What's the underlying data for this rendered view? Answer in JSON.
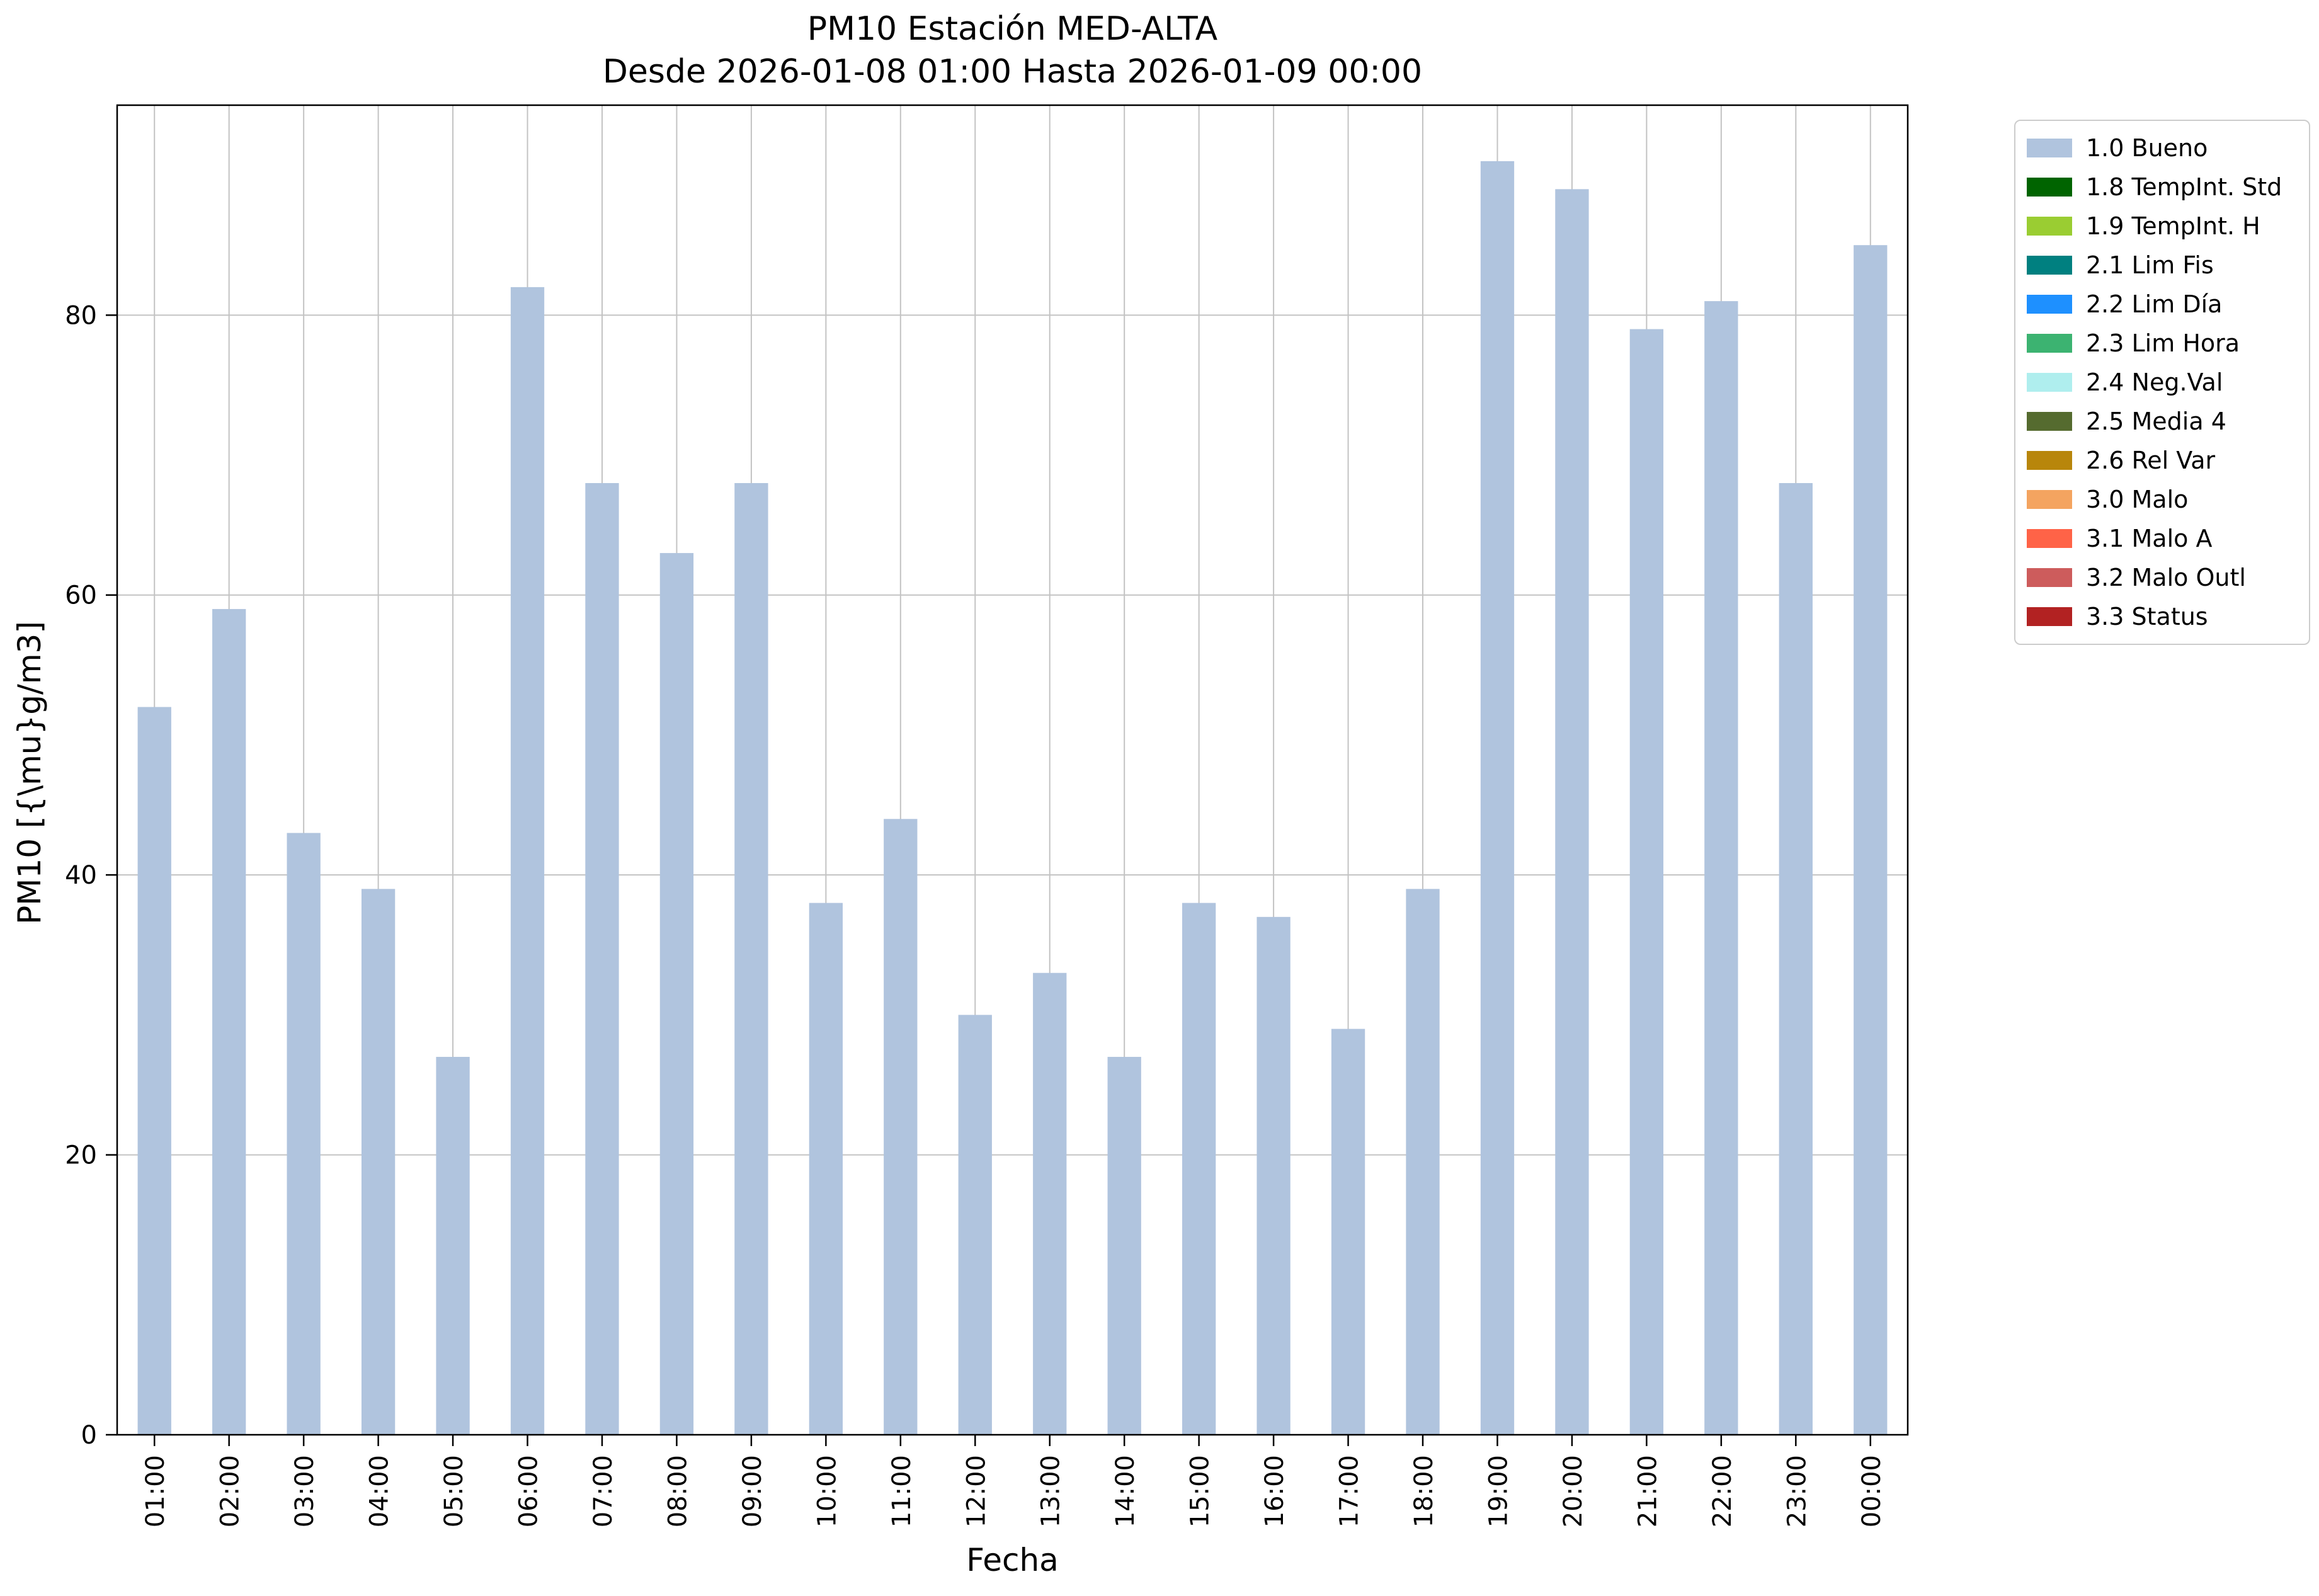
{
  "chart_data": {
    "type": "bar",
    "title_lines": [
      "PM10 Estación MED-ALTA",
      "Desde 2026-01-08 01:00 Hasta 2026-01-09 00:00"
    ],
    "xlabel": "Fecha",
    "ylabel": "PM10 [{\\mu}g/m3]",
    "categories": [
      "01:00",
      "02:00",
      "03:00",
      "04:00",
      "05:00",
      "06:00",
      "07:00",
      "08:00",
      "09:00",
      "10:00",
      "11:00",
      "12:00",
      "13:00",
      "14:00",
      "15:00",
      "16:00",
      "17:00",
      "18:00",
      "19:00",
      "20:00",
      "21:00",
      "22:00",
      "23:00",
      "00:00"
    ],
    "values": [
      52,
      59,
      43,
      39,
      27,
      82,
      68,
      63,
      68,
      38,
      44,
      30,
      33,
      27,
      38,
      37,
      29,
      39,
      91,
      89,
      79,
      81,
      68,
      85
    ],
    "yticks": [
      0,
      20,
      40,
      60,
      80
    ],
    "ylim": [
      0,
      95
    ],
    "grid": true,
    "bar_color": "#b0c4de",
    "legend_position": "outside upper right",
    "legend": [
      {
        "label": "1.0 Bueno",
        "color": "#b0c4de"
      },
      {
        "label": "1.8 TempInt. Std",
        "color": "#006400"
      },
      {
        "label": "1.9 TempInt. H",
        "color": "#9acd32"
      },
      {
        "label": "2.1 Lim Fis",
        "color": "#008080"
      },
      {
        "label": "2.2 Lim Día",
        "color": "#1e90ff"
      },
      {
        "label": "2.3 Lim Hora",
        "color": "#3cb371"
      },
      {
        "label": "2.4 Neg.Val",
        "color": "#afeeee"
      },
      {
        "label": "2.5 Media 4",
        "color": "#556b2f"
      },
      {
        "label": "2.6 Rel Var",
        "color": "#b8860b"
      },
      {
        "label": "3.0 Malo",
        "color": "#f4a460"
      },
      {
        "label": "3.1 Malo A",
        "color": "#ff6347"
      },
      {
        "label": "3.2 Malo Outl",
        "color": "#cd5c5c"
      },
      {
        "label": "3.3 Status",
        "color": "#b22222"
      }
    ]
  }
}
